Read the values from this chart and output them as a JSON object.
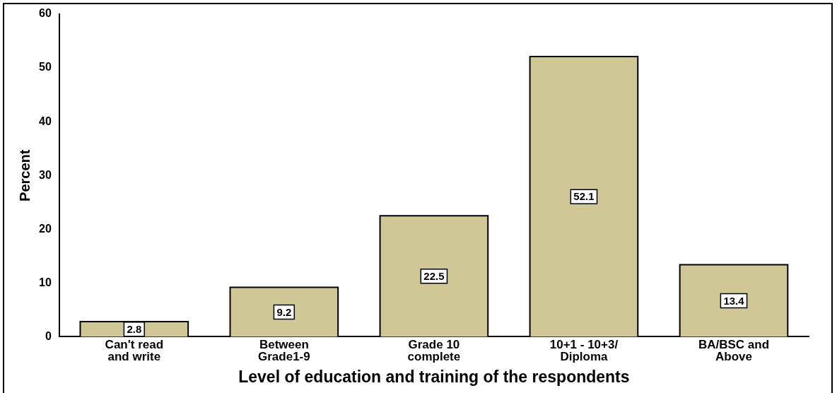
{
  "chart_data": {
    "type": "bar",
    "xlabel": "Level of education and training of the respondents",
    "ylabel": "Percent",
    "categories": [
      "Can't read and write",
      "Between Grade1-9",
      "Grade 10 complete",
      "10+1 - 10+3/ Diploma",
      "BA/BSC and Above"
    ],
    "values": [
      2.8,
      9.2,
      22.5,
      52.1,
      13.4
    ],
    "color": "#cfc796",
    "ylim": [
      0,
      60
    ],
    "yticks": [
      0,
      10,
      20,
      30,
      40,
      50,
      60
    ],
    "grid": false,
    "legend": false,
    "data_labels": true
  }
}
